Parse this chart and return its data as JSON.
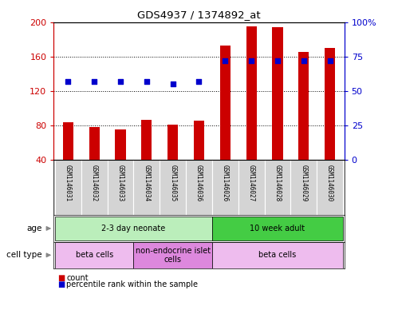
{
  "title": "GDS4937 / 1374892_at",
  "samples": [
    "GSM1146031",
    "GSM1146032",
    "GSM1146033",
    "GSM1146034",
    "GSM1146035",
    "GSM1146036",
    "GSM1146026",
    "GSM1146027",
    "GSM1146028",
    "GSM1146029",
    "GSM1146030"
  ],
  "bar_values": [
    84,
    78,
    76,
    87,
    81,
    86,
    173,
    195,
    194,
    165,
    170
  ],
  "percentile_values": [
    57,
    57,
    57,
    57,
    55,
    57,
    72,
    72,
    72,
    72,
    72
  ],
  "ylim_left": [
    40,
    200
  ],
  "ylim_right": [
    0,
    100
  ],
  "yticks_left": [
    40,
    80,
    120,
    160,
    200
  ],
  "yticks_right": [
    0,
    25,
    50,
    75,
    100
  ],
  "bar_color": "#cc0000",
  "percentile_color": "#0000cc",
  "age_groups": [
    {
      "label": "2-3 day neonate",
      "start": 0,
      "end": 6,
      "color": "#bbeebb"
    },
    {
      "label": "10 week adult",
      "start": 6,
      "end": 11,
      "color": "#44cc44"
    }
  ],
  "cell_type_groups": [
    {
      "label": "beta cells",
      "start": 0,
      "end": 3,
      "color": "#eebcee"
    },
    {
      "label": "non-endocrine islet\ncells",
      "start": 3,
      "end": 6,
      "color": "#dd88dd"
    },
    {
      "label": "beta cells",
      "start": 6,
      "end": 11,
      "color": "#eebcee"
    }
  ],
  "legend_items": [
    {
      "label": "count",
      "color": "#cc0000"
    },
    {
      "label": "percentile rank within the sample",
      "color": "#0000cc"
    }
  ],
  "age_label": "age",
  "cell_type_label": "cell type",
  "background_color": "#ffffff",
  "tick_label_color_left": "#cc0000",
  "tick_label_color_right": "#0000cc"
}
